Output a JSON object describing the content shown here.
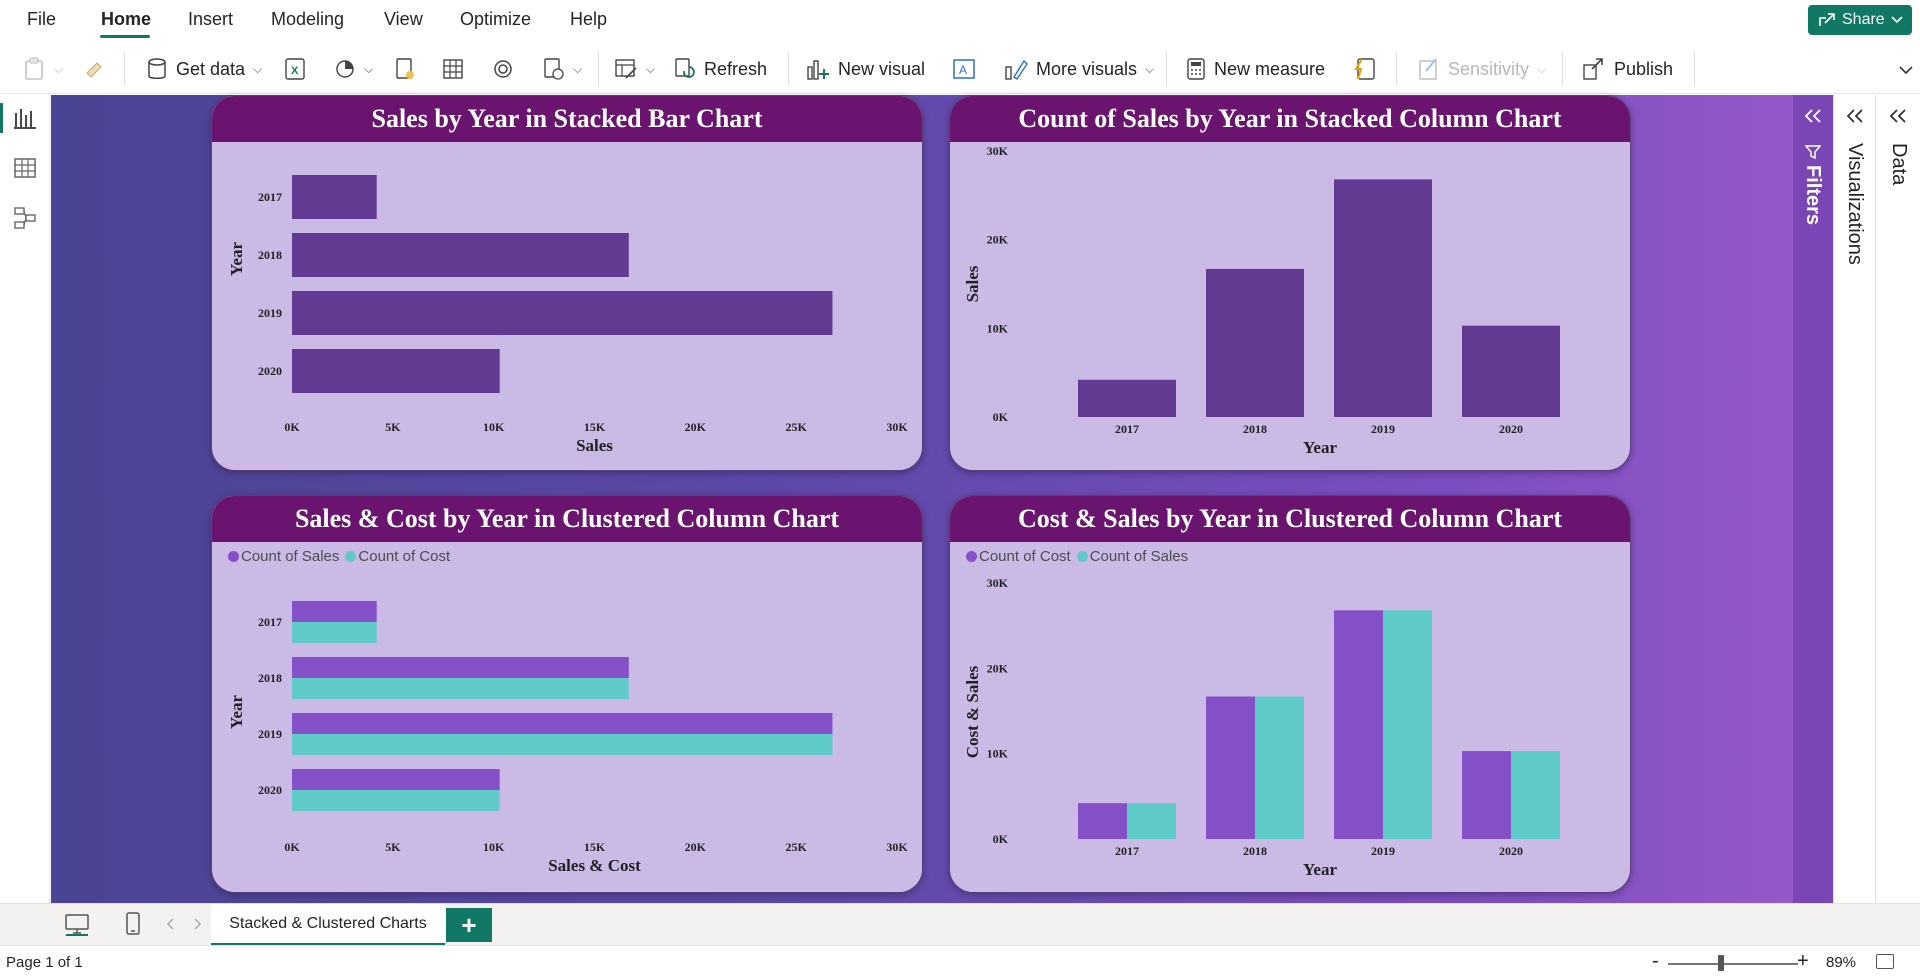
{
  "menu": {
    "items": [
      "File",
      "Home",
      "Insert",
      "Modeling",
      "View",
      "Optimize",
      "Help"
    ],
    "share_label": "Share"
  },
  "ribbon": {
    "get_data": "Get data",
    "refresh": "Refresh",
    "new_visual": "New visual",
    "more_visuals": "More visuals",
    "new_measure": "New measure",
    "sensitivity": "Sensitivity",
    "publish": "Publish"
  },
  "panes": {
    "filters": "Filters",
    "visualizations": "Visualizations",
    "data": "Data"
  },
  "page_tabs": {
    "active_tab": "Stacked & Clustered Charts"
  },
  "status": {
    "page_indicator": "Page 1 of 1",
    "zoom": "89%",
    "zoom_minus": "-",
    "zoom_plus": "+"
  },
  "colors": {
    "brand": "#117865",
    "title_bar": "#6a1470",
    "card_bg": "#cbb9e6",
    "series_single": "#633a92",
    "count_of_sales": "#8550c8",
    "count_of_cost": "#5ecbc8"
  },
  "chart_data": [
    {
      "type": "bar",
      "orientation": "horizontal",
      "title": "Sales by Year in Stacked Bar Chart",
      "xlabel": "Sales",
      "ylabel": "Year",
      "categories": [
        "2017",
        "2018",
        "2019",
        "2020"
      ],
      "values": [
        4200,
        16700,
        26800,
        10300
      ],
      "xlim": [
        0,
        30000
      ],
      "ticks": [
        "0K",
        "5K",
        "10K",
        "15K",
        "20K",
        "25K",
        "30K"
      ],
      "grid": false
    },
    {
      "type": "bar",
      "orientation": "vertical",
      "title": "Count of Sales by Year in Stacked Column Chart",
      "xlabel": "Year",
      "ylabel": "Sales",
      "categories": [
        "2017",
        "2018",
        "2019",
        "2020"
      ],
      "values": [
        4200,
        16700,
        26800,
        10300
      ],
      "ylim": [
        0,
        30000
      ],
      "ticks": [
        "0K",
        "10K",
        "20K",
        "30K"
      ],
      "grid": false
    },
    {
      "type": "bar",
      "orientation": "horizontal",
      "title": "Sales & Cost by Year in Clustered Column Chart",
      "xlabel": "Sales & Cost",
      "ylabel": "Year",
      "categories": [
        "2017",
        "2018",
        "2019",
        "2020"
      ],
      "series": [
        {
          "name": "Count of Sales",
          "values": [
            4200,
            16700,
            26800,
            10300
          ]
        },
        {
          "name": "Count of Cost",
          "values": [
            4200,
            16700,
            26800,
            10300
          ]
        }
      ],
      "xlim": [
        0,
        30000
      ],
      "ticks": [
        "0K",
        "5K",
        "10K",
        "15K",
        "20K",
        "25K",
        "30K"
      ],
      "legend": "top-left",
      "grid": false
    },
    {
      "type": "bar",
      "orientation": "vertical",
      "title": "Cost & Sales by Year in Clustered Column Chart",
      "xlabel": "Year",
      "ylabel": "Cost & Sales",
      "categories": [
        "2017",
        "2018",
        "2019",
        "2020"
      ],
      "series": [
        {
          "name": "Count of Cost",
          "values": [
            4200,
            16700,
            26800,
            10300
          ]
        },
        {
          "name": "Count of Sales",
          "values": [
            4200,
            16700,
            26800,
            10300
          ]
        }
      ],
      "ylim": [
        0,
        30000
      ],
      "ticks": [
        "0K",
        "10K",
        "20K",
        "30K"
      ],
      "legend": "top-left",
      "grid": false
    }
  ]
}
